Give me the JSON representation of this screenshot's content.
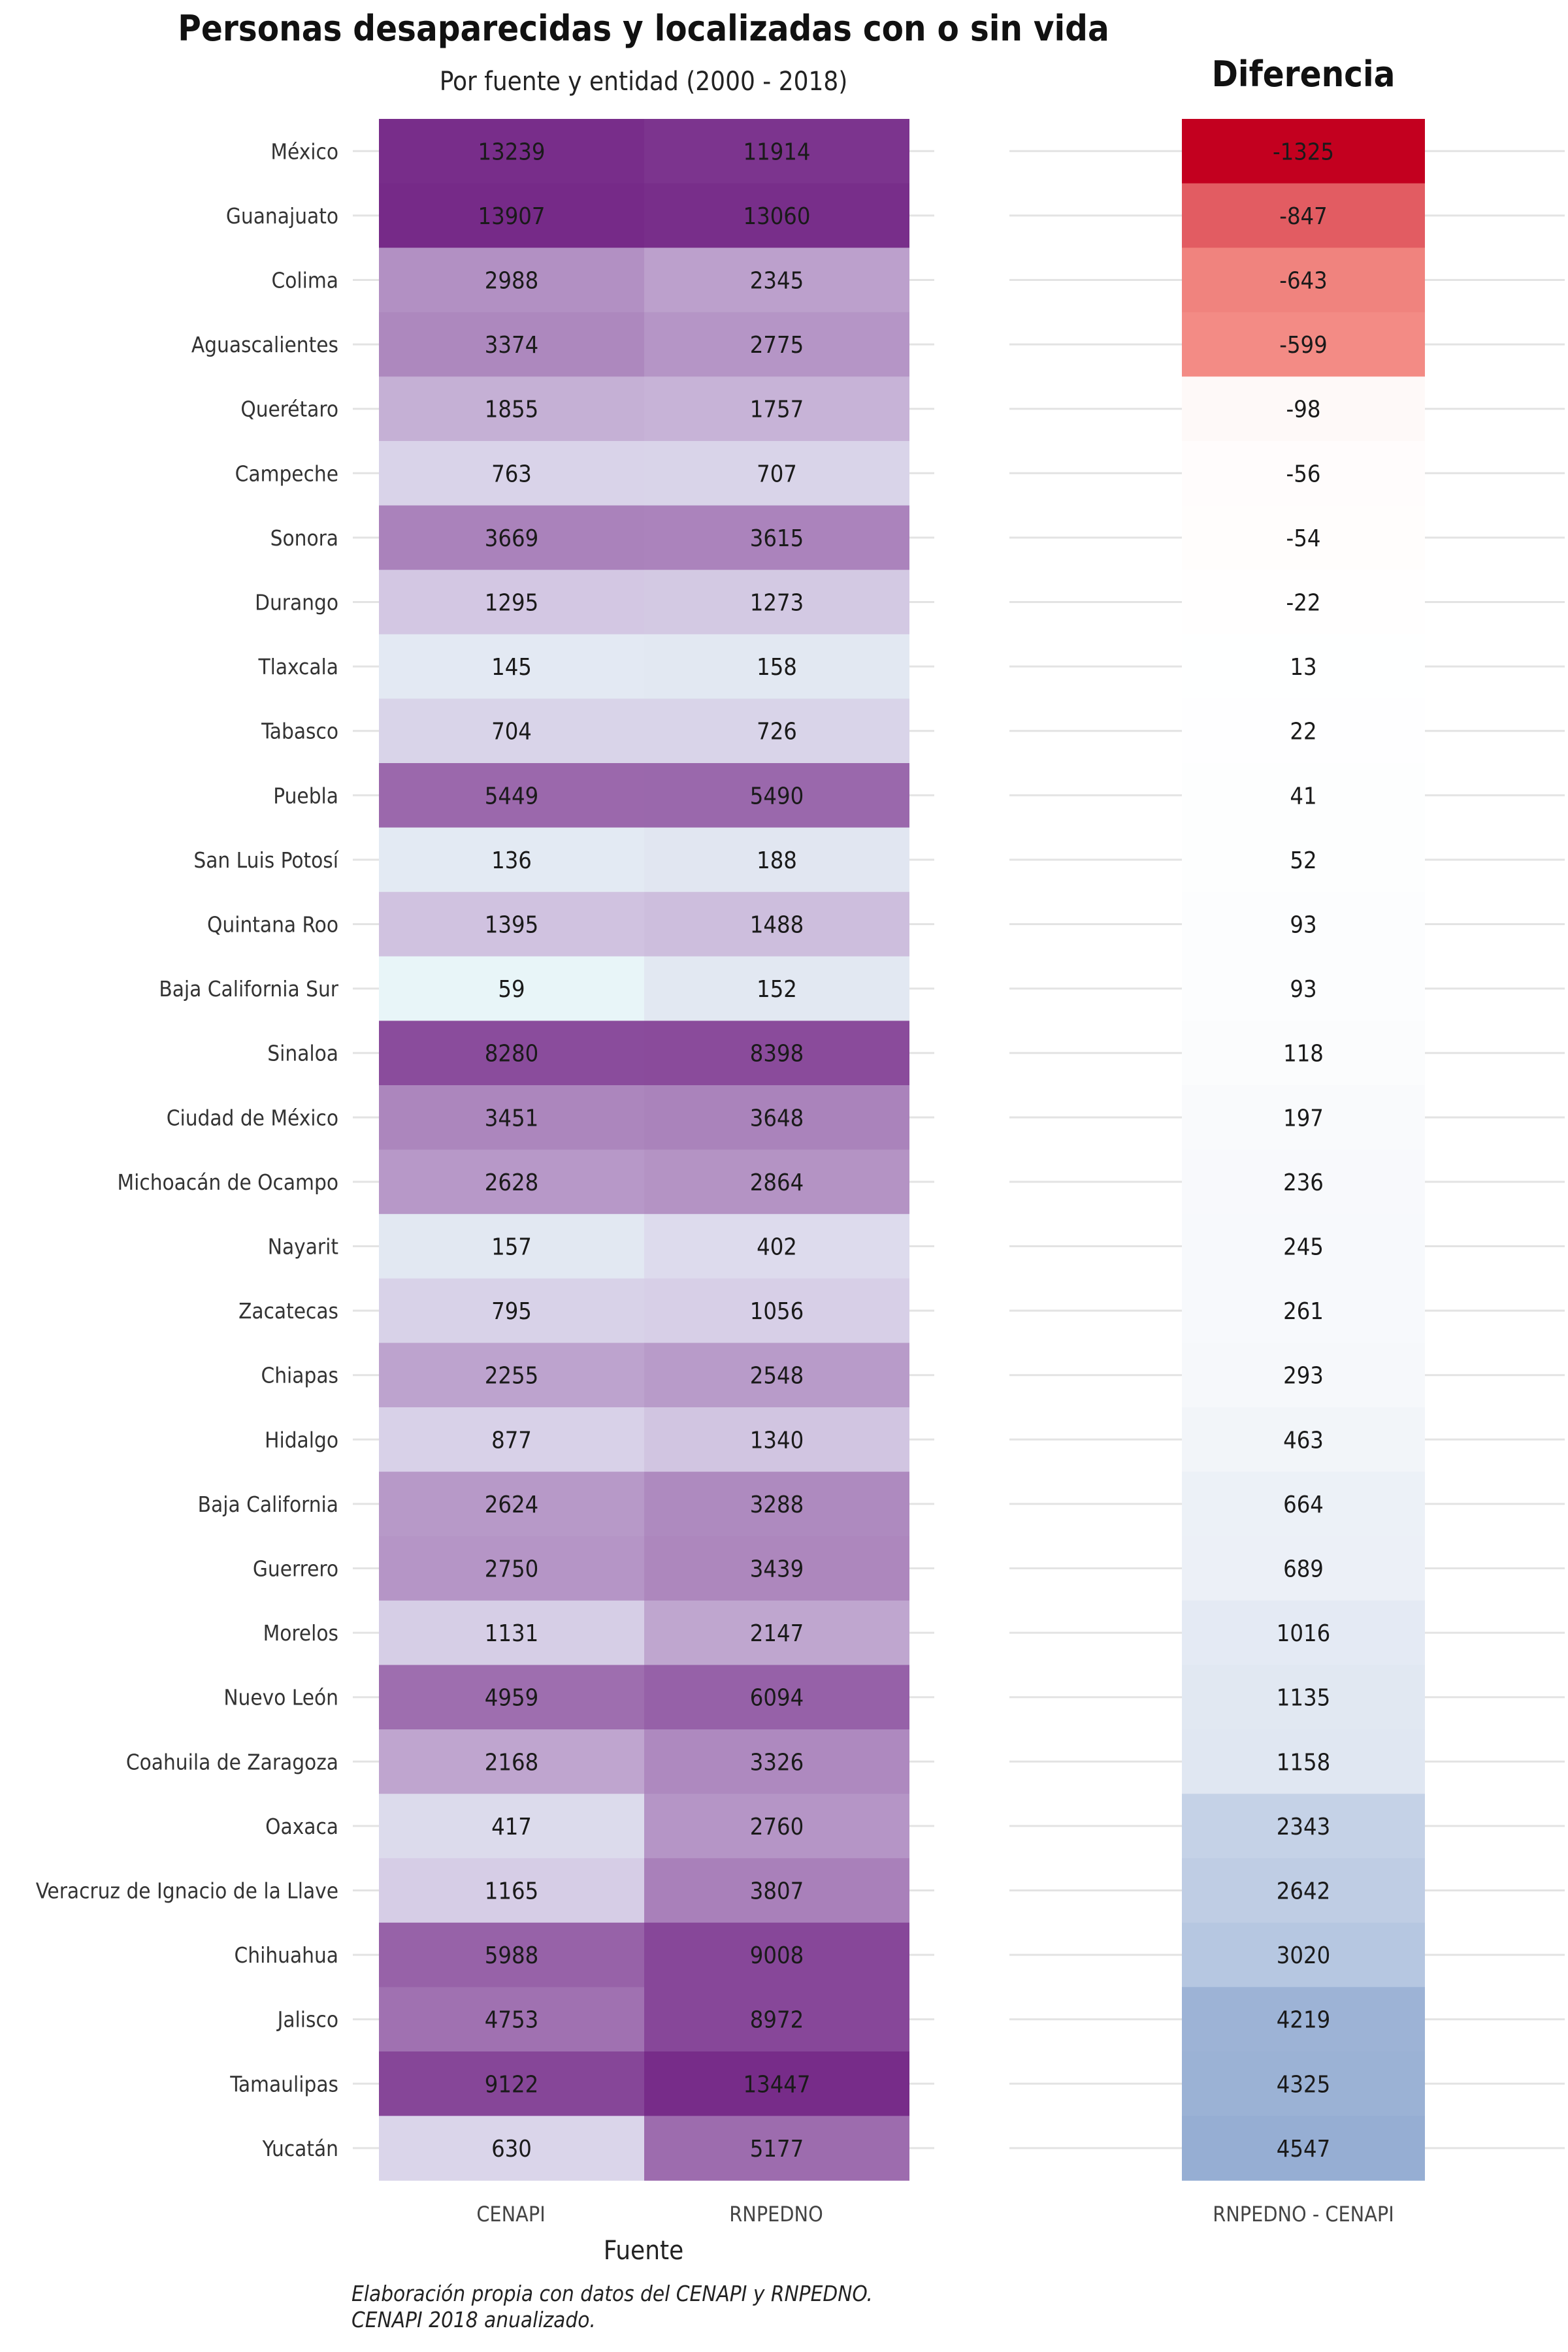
{
  "chart_data": {
    "type": "heatmap",
    "title": "Personas desaparecidas y localizadas con o sin vida",
    "subtitle": "Por fuente y entidad (2000 - 2018)",
    "diff_title": "Diferencia",
    "xlabel": "Fuente",
    "columns": [
      "CENAPI",
      "RNPEDNO"
    ],
    "diff_column": "RNPEDNO - CENAPI",
    "caption_lines": [
      "Elaboración propia con datos del CENAPI y RNPEDNO.",
      "CENAPI 2018 anualizado."
    ],
    "rows": [
      {
        "entity": "México",
        "cenapi": 13239,
        "rnpedno": 11914,
        "diff": -1325
      },
      {
        "entity": "Guanajuato",
        "cenapi": 13907,
        "rnpedno": 13060,
        "diff": -847
      },
      {
        "entity": "Colima",
        "cenapi": 2988,
        "rnpedno": 2345,
        "diff": -643
      },
      {
        "entity": "Aguascalientes",
        "cenapi": 3374,
        "rnpedno": 2775,
        "diff": -599
      },
      {
        "entity": "Querétaro",
        "cenapi": 1855,
        "rnpedno": 1757,
        "diff": -98
      },
      {
        "entity": "Campeche",
        "cenapi": 763,
        "rnpedno": 707,
        "diff": -56
      },
      {
        "entity": "Sonora",
        "cenapi": 3669,
        "rnpedno": 3615,
        "diff": -54
      },
      {
        "entity": "Durango",
        "cenapi": 1295,
        "rnpedno": 1273,
        "diff": -22
      },
      {
        "entity": "Tlaxcala",
        "cenapi": 145,
        "rnpedno": 158,
        "diff": 13
      },
      {
        "entity": "Tabasco",
        "cenapi": 704,
        "rnpedno": 726,
        "diff": 22
      },
      {
        "entity": "Puebla",
        "cenapi": 5449,
        "rnpedno": 5490,
        "diff": 41
      },
      {
        "entity": "San Luis Potosí",
        "cenapi": 136,
        "rnpedno": 188,
        "diff": 52
      },
      {
        "entity": "Quintana Roo",
        "cenapi": 1395,
        "rnpedno": 1488,
        "diff": 93
      },
      {
        "entity": "Baja California Sur",
        "cenapi": 59,
        "rnpedno": 152,
        "diff": 93
      },
      {
        "entity": "Sinaloa",
        "cenapi": 8280,
        "rnpedno": 8398,
        "diff": 118
      },
      {
        "entity": "Ciudad de México",
        "cenapi": 3451,
        "rnpedno": 3648,
        "diff": 197
      },
      {
        "entity": "Michoacán de Ocampo",
        "cenapi": 2628,
        "rnpedno": 2864,
        "diff": 236
      },
      {
        "entity": "Nayarit",
        "cenapi": 157,
        "rnpedno": 402,
        "diff": 245
      },
      {
        "entity": "Zacatecas",
        "cenapi": 795,
        "rnpedno": 1056,
        "diff": 261
      },
      {
        "entity": "Chiapas",
        "cenapi": 2255,
        "rnpedno": 2548,
        "diff": 293
      },
      {
        "entity": "Hidalgo",
        "cenapi": 877,
        "rnpedno": 1340,
        "diff": 463
      },
      {
        "entity": "Baja California",
        "cenapi": 2624,
        "rnpedno": 3288,
        "diff": 664
      },
      {
        "entity": "Guerrero",
        "cenapi": 2750,
        "rnpedno": 3439,
        "diff": 689
      },
      {
        "entity": "Morelos",
        "cenapi": 1131,
        "rnpedno": 2147,
        "diff": 1016
      },
      {
        "entity": "Nuevo León",
        "cenapi": 4959,
        "rnpedno": 6094,
        "diff": 1135
      },
      {
        "entity": "Coahuila de Zaragoza",
        "cenapi": 2168,
        "rnpedno": 3326,
        "diff": 1158
      },
      {
        "entity": "Oaxaca",
        "cenapi": 417,
        "rnpedno": 2760,
        "diff": 2343
      },
      {
        "entity": "Veracruz de Ignacio de la Llave",
        "cenapi": 1165,
        "rnpedno": 3807,
        "diff": 2642
      },
      {
        "entity": "Chihuahua",
        "cenapi": 5988,
        "rnpedno": 9008,
        "diff": 3020
      },
      {
        "entity": "Jalisco",
        "cenapi": 4753,
        "rnpedno": 8972,
        "diff": 4219
      },
      {
        "entity": "Tamaulipas",
        "cenapi": 9122,
        "rnpedno": 13447,
        "diff": 4325
      },
      {
        "entity": "Yucatán",
        "cenapi": 630,
        "rnpedno": 5177,
        "diff": 4547
      }
    ]
  },
  "colors": {
    "purple_low": "#e8f5f8",
    "purple_mid": "#d6cde6",
    "purple_high": "#762a88",
    "diff_neg_max": "#c3001f",
    "diff_neg_mid": "#f38c85",
    "diff_zero": "#ffffff",
    "diff_pos_max": "#96aed3",
    "gridline": "#e3e3e3"
  }
}
